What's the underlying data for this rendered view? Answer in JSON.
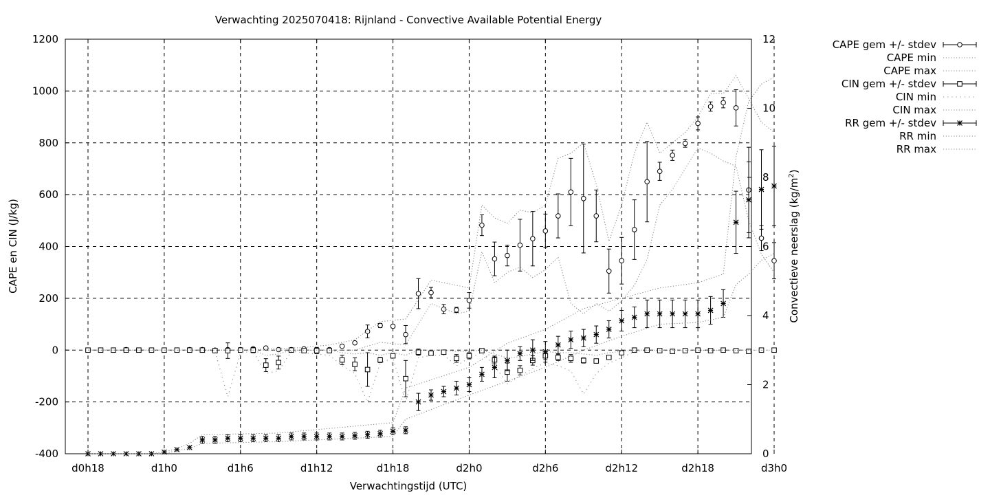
{
  "chart_data": {
    "type": "line",
    "title": "Verwachting 2025070418: Rijnland - Convective Available Potential Energy",
    "xlabel": "Verwachtingstijd (UTC)",
    "ylabel": "CAPE en CIN (J/kg)",
    "y2label_main": "Convectieve neerslag (kg/m",
    "y2label_sup": "2",
    "y2label_end": ")",
    "xlim": [
      18,
      72
    ],
    "ylim": [
      -400,
      1200
    ],
    "y2lim": [
      0,
      12
    ],
    "xticks": [
      {
        "x": 18,
        "label": "d0h18"
      },
      {
        "x": 24,
        "label": "d1h0"
      },
      {
        "x": 30,
        "label": "d1h6"
      },
      {
        "x": 36,
        "label": "d1h12"
      },
      {
        "x": 42,
        "label": "d1h18"
      },
      {
        "x": 48,
        "label": "d2h0"
      },
      {
        "x": 54,
        "label": "d2h6"
      },
      {
        "x": 60,
        "label": "d2h12"
      },
      {
        "x": 66,
        "label": "d2h18"
      },
      {
        "x": 72,
        "label": "d3h0"
      }
    ],
    "yticks": [
      -400,
      -200,
      0,
      200,
      400,
      600,
      800,
      1000,
      1200
    ],
    "y2ticks": [
      0,
      2,
      4,
      6,
      8,
      10,
      12
    ],
    "grid": true,
    "legend_position": "right",
    "legend": [
      {
        "label": "CAPE gem +/- stdev",
        "style": "errorbar",
        "marker": "circle"
      },
      {
        "label": "CAPE min",
        "style": "dotted"
      },
      {
        "label": "CAPE max",
        "style": "dotted"
      },
      {
        "label": "CIN gem +/- stdev",
        "style": "errorbar",
        "marker": "square"
      },
      {
        "label": "CIN min",
        "style": "dotted-sparse"
      },
      {
        "label": "CIN max",
        "style": "dotted"
      },
      {
        "label": "RR gem +/- stdev",
        "style": "errorbar",
        "marker": "star"
      },
      {
        "label": "RR min",
        "style": "dotted"
      },
      {
        "label": "RR max",
        "style": "dotted"
      }
    ],
    "series": [
      {
        "name": "CAPE gem +/- stdev",
        "axis": "y",
        "x": [
          18,
          19,
          20,
          21,
          22,
          23,
          24,
          25,
          26,
          27,
          28,
          29,
          30,
          31,
          32,
          33,
          34,
          35,
          36,
          37,
          38,
          39,
          40,
          41,
          42,
          43,
          44,
          45,
          46,
          47,
          48,
          49,
          50,
          51,
          52,
          53,
          54,
          55,
          56,
          57,
          58,
          59,
          60,
          61,
          62,
          63,
          64,
          65,
          66,
          67,
          68,
          69,
          70,
          71,
          72
        ],
        "mean": [
          0,
          0,
          0,
          2,
          0,
          0,
          0,
          0,
          2,
          2,
          0,
          2,
          2,
          5,
          8,
          2,
          2,
          5,
          2,
          2,
          15,
          28,
          72,
          95,
          92,
          60,
          218,
          222,
          158,
          155,
          192,
          482,
          352,
          365,
          405,
          430,
          460,
          518,
          610,
          585,
          518,
          305,
          345,
          465,
          650,
          690,
          752,
          798,
          875,
          940,
          955,
          935,
          618,
          432,
          345
        ],
        "stdev": [
          0,
          0,
          0,
          0,
          0,
          0,
          0,
          0,
          0,
          0,
          0,
          0,
          0,
          2,
          2,
          0,
          0,
          2,
          0,
          0,
          4,
          5,
          25,
          8,
          6,
          35,
          58,
          20,
          18,
          10,
          30,
          40,
          65,
          40,
          100,
          105,
          65,
          85,
          130,
          210,
          100,
          85,
          90,
          115,
          155,
          35,
          20,
          15,
          25,
          18,
          20,
          70,
          165,
          48,
          70
        ]
      },
      {
        "name": "CAPE min",
        "axis": "y",
        "x": [
          18,
          24,
          30,
          35,
          37,
          39,
          41,
          43,
          45,
          47,
          48,
          49,
          50,
          51,
          52,
          53,
          54,
          55,
          56,
          57,
          58,
          59,
          60,
          61,
          62,
          63,
          64,
          65,
          66,
          67,
          68,
          69,
          70,
          71,
          72
        ],
        "values": [
          0,
          0,
          0,
          0,
          0,
          0,
          30,
          20,
          180,
          140,
          150,
          380,
          260,
          300,
          320,
          280,
          310,
          360,
          180,
          140,
          180,
          150,
          190,
          250,
          350,
          560,
          620,
          700,
          780,
          760,
          730,
          710,
          500,
          370,
          300
        ]
      },
      {
        "name": "CAPE max",
        "axis": "y",
        "x": [
          18,
          24,
          30,
          35,
          37,
          39,
          41,
          43,
          45,
          47,
          48,
          49,
          50,
          51,
          52,
          53,
          54,
          55,
          56,
          57,
          58,
          59,
          60,
          61,
          62,
          63,
          64,
          65,
          66,
          67,
          68,
          69,
          70,
          71,
          72
        ],
        "values": [
          0,
          0,
          0,
          10,
          20,
          40,
          110,
          120,
          270,
          250,
          240,
          560,
          510,
          490,
          540,
          530,
          560,
          740,
          760,
          800,
          640,
          420,
          560,
          760,
          880,
          760,
          800,
          840,
          900,
          990,
          990,
          1060,
          970,
          880,
          840
        ]
      },
      {
        "name": "CIN gem +/- stdev",
        "axis": "y",
        "x": [
          18,
          19,
          20,
          21,
          22,
          23,
          24,
          25,
          26,
          27,
          28,
          29,
          30,
          31,
          32,
          33,
          34,
          35,
          36,
          37,
          38,
          39,
          40,
          41,
          42,
          43,
          44,
          45,
          46,
          47,
          48,
          49,
          50,
          51,
          52,
          53,
          54,
          55,
          56,
          57,
          58,
          59,
          60,
          61,
          62,
          63,
          64,
          65,
          66,
          67,
          68,
          69,
          70,
          71,
          72
        ],
        "mean": [
          0,
          0,
          0,
          0,
          0,
          0,
          0,
          0,
          0,
          0,
          -2,
          -2,
          0,
          0,
          -58,
          -48,
          0,
          -2,
          -2,
          -2,
          -38,
          -55,
          -75,
          -38,
          -22,
          -110,
          -8,
          -12,
          -8,
          -32,
          -22,
          -2,
          -38,
          -85,
          -78,
          -40,
          -22,
          -28,
          -32,
          -40,
          -42,
          -28,
          -10,
          0,
          0,
          -2,
          -5,
          -2,
          0,
          -2,
          0,
          -2,
          -5,
          0,
          0
        ],
        "stdev": [
          0,
          0,
          0,
          0,
          0,
          0,
          0,
          0,
          0,
          0,
          0,
          30,
          2,
          10,
          25,
          25,
          2,
          5,
          12,
          5,
          18,
          25,
          65,
          10,
          5,
          70,
          12,
          5,
          5,
          15,
          12,
          5,
          15,
          35,
          18,
          18,
          15,
          12,
          15,
          10,
          8,
          8,
          6,
          2,
          2,
          2,
          2,
          2,
          2,
          2,
          2,
          2,
          2,
          2,
          2
        ]
      },
      {
        "name": "CIN min",
        "axis": "y",
        "x": [
          18,
          21,
          22,
          23,
          24,
          25,
          26,
          27,
          28,
          29,
          30,
          31,
          32,
          33,
          34,
          35,
          36,
          37,
          38,
          39,
          40,
          41,
          42,
          43,
          44,
          45,
          46,
          47,
          48,
          49,
          50,
          51,
          52,
          53,
          54,
          55,
          56,
          57,
          58,
          59,
          60,
          61,
          62,
          72
        ],
        "values": [
          0,
          0,
          -2,
          0,
          0,
          0,
          0,
          0,
          -5,
          -180,
          -10,
          -5,
          -90,
          -80,
          -5,
          -10,
          -15,
          -20,
          -60,
          -90,
          -200,
          -50,
          -30,
          -200,
          -30,
          -20,
          -20,
          -60,
          -30,
          -10,
          -60,
          -130,
          -100,
          -70,
          -50,
          -60,
          -80,
          -170,
          -90,
          -50,
          -30,
          -5,
          -2,
          0
        ]
      },
      {
        "name": "CIN max",
        "axis": "y",
        "x": [
          18,
          22,
          24,
          29,
          30,
          31,
          32,
          33,
          34,
          35,
          36,
          37,
          38,
          39,
          40,
          41,
          42,
          43,
          44,
          45,
          46,
          47,
          48,
          49,
          50,
          51,
          52,
          53,
          54,
          55,
          56,
          57,
          58,
          59,
          60,
          61,
          62,
          72
        ],
        "values": [
          0,
          0,
          0,
          0,
          0,
          0,
          -20,
          -15,
          0,
          0,
          0,
          0,
          -10,
          -15,
          -10,
          -20,
          -10,
          -20,
          0,
          0,
          0,
          -5,
          -5,
          0,
          -15,
          -30,
          -25,
          -15,
          -5,
          -10,
          -10,
          -15,
          -20,
          -10,
          -5,
          0,
          0,
          0
        ]
      },
      {
        "name": "RR gem +/- stdev",
        "axis": "y2",
        "x": [
          18,
          19,
          20,
          21,
          22,
          23,
          24,
          25,
          26,
          27,
          28,
          29,
          30,
          31,
          32,
          33,
          34,
          35,
          36,
          37,
          38,
          39,
          40,
          41,
          42,
          43,
          44,
          45,
          46,
          47,
          48,
          49,
          50,
          51,
          52,
          53,
          54,
          55,
          56,
          57,
          58,
          59,
          60,
          61,
          62,
          63,
          64,
          65,
          66,
          67,
          68,
          69,
          70,
          71,
          72
        ],
        "mean": [
          0,
          0,
          0,
          0,
          0,
          0,
          0.05,
          0.12,
          0.18,
          0.4,
          0.4,
          0.45,
          0.45,
          0.45,
          0.45,
          0.45,
          0.5,
          0.5,
          0.5,
          0.5,
          0.5,
          0.52,
          0.55,
          0.58,
          0.65,
          0.68,
          1.5,
          1.7,
          1.8,
          1.9,
          2.0,
          2.3,
          2.5,
          2.7,
          2.9,
          3.0,
          2.95,
          3.15,
          3.3,
          3.35,
          3.45,
          3.6,
          3.85,
          3.95,
          4.05,
          4.05,
          4.05,
          4.05,
          4.05,
          4.15,
          4.35,
          6.7,
          7.35,
          7.65,
          7.75
        ],
        "stdev": [
          0,
          0,
          0,
          0,
          0,
          0,
          0,
          0,
          0,
          0.1,
          0.1,
          0.1,
          0.1,
          0.1,
          0.1,
          0.1,
          0.1,
          0.1,
          0.1,
          0.1,
          0.1,
          0.1,
          0.1,
          0.1,
          0.1,
          0.1,
          0.25,
          0.15,
          0.15,
          0.2,
          0.2,
          0.2,
          0.3,
          0.3,
          0.2,
          0.3,
          0.3,
          0.25,
          0.25,
          0.25,
          0.25,
          0.25,
          0.3,
          0.3,
          0.4,
          0.4,
          0.4,
          0.4,
          0.4,
          0.4,
          0.4,
          0.9,
          1.1,
          1.15,
          1.15
        ]
      },
      {
        "name": "RR min",
        "axis": "y2",
        "x": [
          18,
          23,
          24,
          25,
          26,
          27,
          33,
          42,
          43,
          48,
          51,
          54,
          57,
          60,
          63,
          66,
          68,
          69,
          70,
          71,
          72
        ],
        "values": [
          0,
          0,
          0,
          0.1,
          0.15,
          0.3,
          0.35,
          0.5,
          1.0,
          1.7,
          2.1,
          2.5,
          3.0,
          3.4,
          3.75,
          3.8,
          3.95,
          4.9,
          5.2,
          5.6,
          5.8
        ]
      },
      {
        "name": "RR max",
        "axis": "y2",
        "x": [
          18,
          23,
          24,
          25,
          26,
          27,
          33,
          42,
          43,
          48,
          51,
          54,
          57,
          60,
          63,
          66,
          68,
          69,
          70,
          71,
          72
        ],
        "values": [
          0,
          0,
          0.05,
          0.15,
          0.3,
          0.55,
          0.6,
          0.9,
          1.9,
          2.5,
          3.2,
          3.6,
          4.2,
          4.5,
          4.8,
          4.95,
          5.2,
          8.6,
          10.2,
          10.7,
          10.9
        ]
      }
    ]
  }
}
